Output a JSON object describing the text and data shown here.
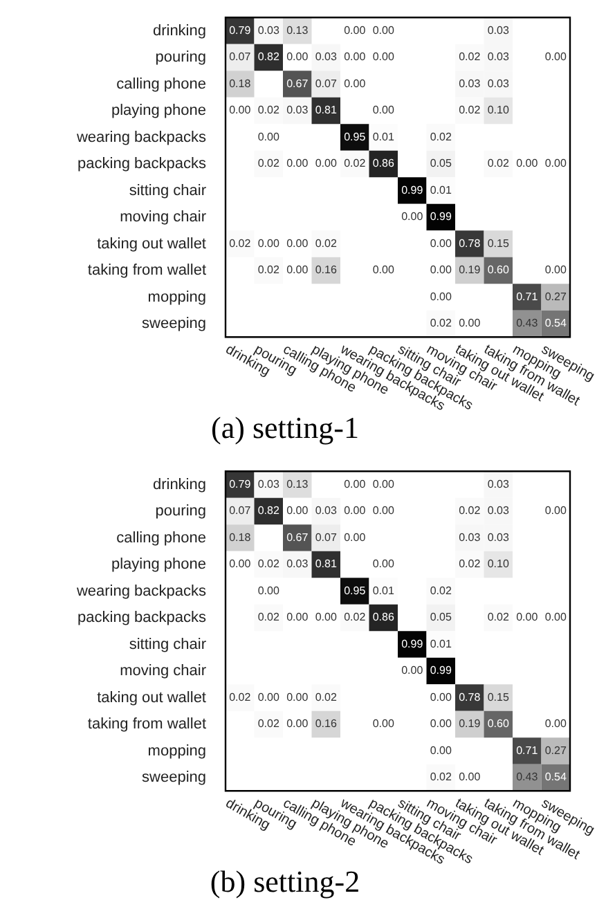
{
  "chart_data": [
    {
      "type": "heatmap",
      "title": "(a) setting-1",
      "data_labels": true,
      "categories": [
        "drinking",
        "pouring",
        "calling phone",
        "playing phone",
        "wearing backpacks",
        "packing backpacks",
        "sitting chair",
        "moving chair",
        "taking out wallet",
        "taking from wallet",
        "mopping",
        "sweeping"
      ],
      "y_categories": [
        "drinking",
        "pouring",
        "calling phone",
        "playing phone",
        "wearing backpacks",
        "packing backpacks",
        "sitting chair",
        "moving chair",
        "taking out wallet",
        "taking from wallet",
        "mopping",
        "sweeping"
      ],
      "cells": [
        [
          0.79,
          0.03,
          0.13,
          null,
          0.0,
          0.0,
          null,
          null,
          null,
          0.03,
          null,
          null
        ],
        [
          0.07,
          0.82,
          0.0,
          0.03,
          0.0,
          0.0,
          null,
          null,
          0.02,
          0.03,
          null,
          0.0
        ],
        [
          0.18,
          null,
          0.67,
          0.07,
          0.0,
          null,
          null,
          null,
          0.03,
          0.03,
          null,
          null
        ],
        [
          0.0,
          0.02,
          0.03,
          0.81,
          null,
          0.0,
          null,
          null,
          0.02,
          0.1,
          null,
          null
        ],
        [
          null,
          0.0,
          null,
          null,
          0.95,
          0.01,
          null,
          0.02,
          null,
          null,
          null,
          null
        ],
        [
          null,
          0.02,
          0.0,
          0.0,
          0.02,
          0.86,
          null,
          0.05,
          null,
          0.02,
          0.0,
          0.0
        ],
        [
          null,
          null,
          null,
          null,
          null,
          null,
          0.99,
          0.01,
          null,
          null,
          null,
          null
        ],
        [
          null,
          null,
          null,
          null,
          null,
          null,
          0.0,
          0.99,
          null,
          null,
          null,
          null
        ],
        [
          0.02,
          0.0,
          0.0,
          0.02,
          null,
          null,
          null,
          0.0,
          0.78,
          0.15,
          null,
          null
        ],
        [
          null,
          0.02,
          0.0,
          0.16,
          null,
          0.0,
          null,
          0.0,
          0.19,
          0.6,
          null,
          0.0
        ],
        [
          null,
          null,
          null,
          null,
          null,
          null,
          null,
          0.0,
          null,
          null,
          0.71,
          0.27
        ],
        [
          null,
          null,
          null,
          null,
          null,
          null,
          null,
          0.02,
          0.0,
          null,
          0.43,
          0.54
        ]
      ],
      "cell_labels": [
        [
          "0.79",
          "0.03",
          "0.13",
          null,
          "0.00",
          "0.00",
          null,
          null,
          null,
          "0.03",
          null,
          null
        ],
        [
          "0.07",
          "0.82",
          "0.00",
          "0.03",
          "0.00",
          "0.00",
          null,
          null,
          "0.02",
          "0.03",
          null,
          "0.00"
        ],
        [
          "0.18",
          null,
          "0.67",
          "0.07",
          "0.00",
          null,
          null,
          null,
          "0.03",
          "0.03",
          null,
          null
        ],
        [
          "0.00",
          "0.02",
          "0.03",
          "0.81",
          null,
          "0.00",
          null,
          null,
          "0.02",
          "0.10",
          null,
          null
        ],
        [
          null,
          "0.00",
          null,
          null,
          "0.95",
          "0.01",
          null,
          "0.02",
          null,
          null,
          null,
          null
        ],
        [
          null,
          "0.02",
          "0.00",
          "0.00",
          "0.02",
          "0.86",
          null,
          "0.05",
          null,
          "0.02",
          "0.00",
          "0.00"
        ],
        [
          null,
          null,
          null,
          null,
          null,
          null,
          "0.99",
          "0.01",
          null,
          null,
          null,
          null
        ],
        [
          null,
          null,
          null,
          null,
          null,
          null,
          "0.00",
          "0.99",
          null,
          null,
          null,
          null
        ],
        [
          "0.02",
          "0.00",
          "0.00",
          "0.02",
          null,
          null,
          null,
          "0.00",
          "0.78",
          "0.15",
          null,
          null
        ],
        [
          null,
          "0.02",
          "0.00",
          "0.16",
          null,
          "0.00",
          null,
          "0.00",
          "0.19",
          "0.60",
          null,
          "0.00"
        ],
        [
          null,
          null,
          null,
          null,
          null,
          null,
          null,
          "0.00",
          null,
          null,
          "0.71",
          "0.27"
        ],
        [
          null,
          null,
          null,
          null,
          null,
          null,
          null,
          "0.02",
          "0.00",
          null,
          "0.43",
          "0.54"
        ]
      ]
    },
    {
      "type": "heatmap",
      "title": "(b) setting-2",
      "data_labels": true,
      "categories": [
        "drinking",
        "pouring",
        "calling phone",
        "playing phone",
        "wearing backpacks",
        "packing backpacks",
        "sitting chair",
        "moving chair",
        "taking out wallet",
        "taking from wallet",
        "mopping",
        "sweeping"
      ],
      "y_categories": [
        "drinking",
        "pouring",
        "calling phone",
        "playing phone",
        "wearing backpacks",
        "packing backpacks",
        "sitting chair",
        "moving chair",
        "taking out wallet",
        "taking from wallet",
        "mopping",
        "sweeping"
      ],
      "cells": [
        [
          0.79,
          0.03,
          0.13,
          null,
          0.0,
          0.0,
          null,
          null,
          null,
          0.03,
          null,
          null
        ],
        [
          0.07,
          0.82,
          0.0,
          0.03,
          0.0,
          0.0,
          null,
          null,
          0.02,
          0.03,
          null,
          0.0
        ],
        [
          0.18,
          null,
          0.67,
          0.07,
          0.0,
          null,
          null,
          null,
          0.03,
          0.03,
          null,
          null
        ],
        [
          0.0,
          0.02,
          0.03,
          0.81,
          null,
          0.0,
          null,
          null,
          0.02,
          0.1,
          null,
          null
        ],
        [
          null,
          0.0,
          null,
          null,
          0.95,
          0.01,
          null,
          0.02,
          null,
          null,
          null,
          null
        ],
        [
          null,
          0.02,
          0.0,
          0.0,
          0.02,
          0.86,
          null,
          0.05,
          null,
          0.02,
          0.0,
          0.0
        ],
        [
          null,
          null,
          null,
          null,
          null,
          null,
          0.99,
          0.01,
          null,
          null,
          null,
          null
        ],
        [
          null,
          null,
          null,
          null,
          null,
          null,
          0.0,
          0.99,
          null,
          null,
          null,
          null
        ],
        [
          0.02,
          0.0,
          0.0,
          0.02,
          null,
          null,
          null,
          0.0,
          0.78,
          0.15,
          null,
          null
        ],
        [
          null,
          0.02,
          0.0,
          0.16,
          null,
          0.0,
          null,
          0.0,
          0.19,
          0.6,
          null,
          0.0
        ],
        [
          null,
          null,
          null,
          null,
          null,
          null,
          null,
          0.0,
          null,
          null,
          0.71,
          0.27
        ],
        [
          null,
          null,
          null,
          null,
          null,
          null,
          null,
          0.02,
          0.0,
          null,
          0.43,
          0.54
        ]
      ],
      "cell_labels": [
        [
          "0.79",
          "0.03",
          "0.13",
          null,
          "0.00",
          "0.00",
          null,
          null,
          null,
          "0.03",
          null,
          null
        ],
        [
          "0.07",
          "0.82",
          "0.00",
          "0.03",
          "0.00",
          "0.00",
          null,
          null,
          "0.02",
          "0.03",
          null,
          "0.00"
        ],
        [
          "0.18",
          null,
          "0.67",
          "0.07",
          "0.00",
          null,
          null,
          null,
          "0.03",
          "0.03",
          null,
          null
        ],
        [
          "0.00",
          "0.02",
          "0.03",
          "0.81",
          null,
          "0.00",
          null,
          null,
          "0.02",
          "0.10",
          null,
          null
        ],
        [
          null,
          "0.00",
          null,
          null,
          "0.95",
          "0.01",
          null,
          "0.02",
          null,
          null,
          null,
          null
        ],
        [
          null,
          "0.02",
          "0.00",
          "0.00",
          "0.02",
          "0.86",
          null,
          "0.05",
          null,
          "0.02",
          "0.00",
          "0.00"
        ],
        [
          null,
          null,
          null,
          null,
          null,
          null,
          "0.99",
          "0.01",
          null,
          null,
          null,
          null
        ],
        [
          null,
          null,
          null,
          null,
          null,
          null,
          "0.00",
          "0.99",
          null,
          null,
          null,
          null
        ],
        [
          "0.02",
          "0.00",
          "0.00",
          "0.02",
          null,
          null,
          null,
          "0.00",
          "0.78",
          "0.15",
          null,
          null
        ],
        [
          null,
          "0.02",
          "0.00",
          "0.16",
          null,
          "0.00",
          null,
          "0.00",
          "0.19",
          "0.60",
          null,
          "0.00"
        ],
        [
          null,
          null,
          null,
          null,
          null,
          null,
          null,
          "0.00",
          null,
          null,
          "0.71",
          "0.27"
        ],
        [
          null,
          null,
          null,
          null,
          null,
          null,
          null,
          "0.02",
          "0.00",
          null,
          "0.43",
          "0.54"
        ]
      ]
    }
  ]
}
